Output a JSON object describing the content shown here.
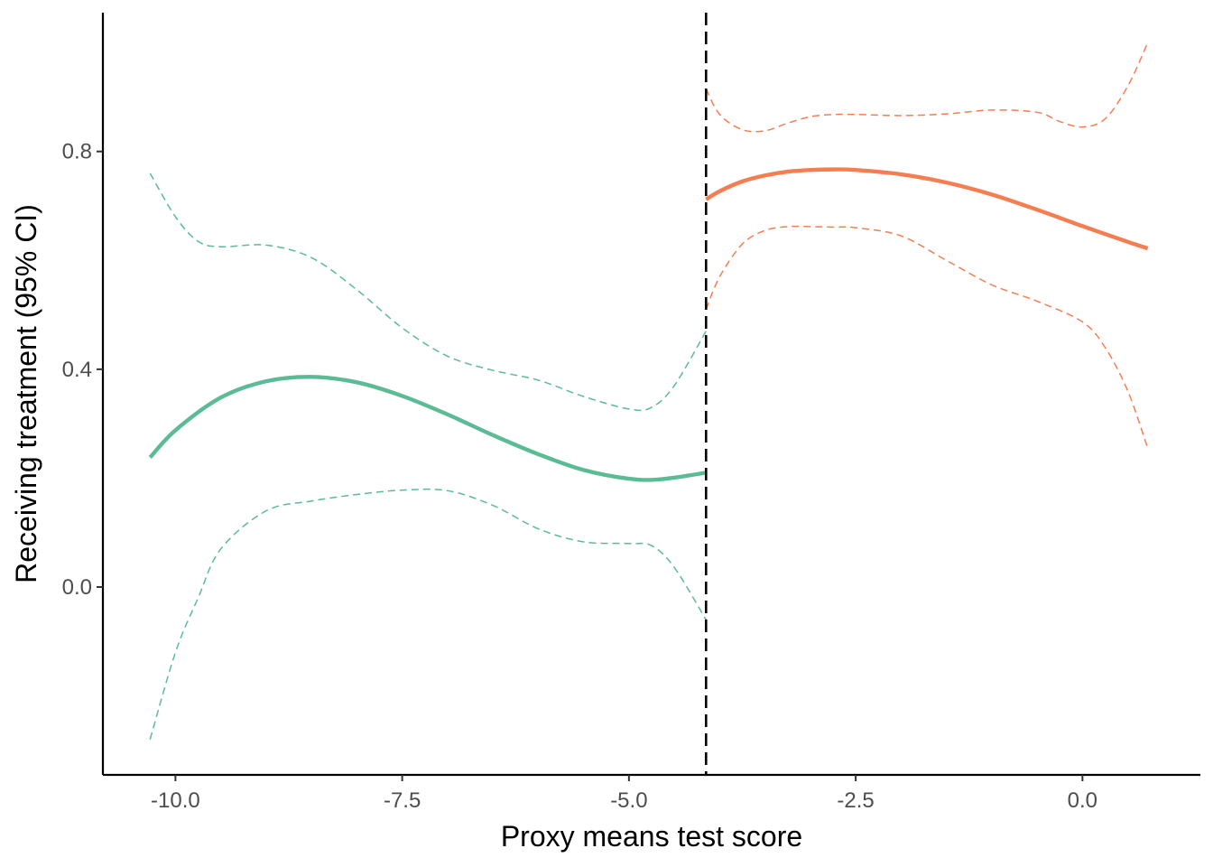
{
  "chart_data": {
    "type": "line",
    "title": "",
    "xlabel": "Proxy means test score",
    "ylabel": "Receiving treatment (95% CI)",
    "xlim": [
      -10.8,
      1.3
    ],
    "ylim": [
      -0.345,
      1.055
    ],
    "x_ticks": [
      -10.0,
      -7.5,
      -5.0,
      -2.5,
      0.0
    ],
    "x_tick_labels": [
      "-10.0",
      "-7.5",
      "-5.0",
      "-2.5",
      "0.0"
    ],
    "y_ticks": [
      0.0,
      0.4,
      0.8
    ],
    "y_tick_labels": [
      "0.0",
      "0.4",
      "0.8"
    ],
    "cutoff": -4.15,
    "grid": false,
    "legend": "none",
    "colors": {
      "left": "#5bbb95",
      "right": "#f47e52",
      "cutoff": "#000000",
      "axis": "#000000"
    },
    "series": [
      {
        "side": "left",
        "role": "fit",
        "x": [
          -10.28,
          -10.0,
          -9.5,
          -9.0,
          -8.5,
          -8.0,
          -7.5,
          -7.0,
          -6.5,
          -6.0,
          -5.5,
          -5.0,
          -4.65,
          -4.15
        ],
        "y": [
          0.238,
          0.288,
          0.348,
          0.378,
          0.386,
          0.376,
          0.351,
          0.317,
          0.279,
          0.244,
          0.215,
          0.199,
          0.198,
          0.21
        ]
      },
      {
        "side": "left",
        "role": "upper",
        "x": [
          -10.28,
          -10.0,
          -9.75,
          -9.5,
          -9.0,
          -8.5,
          -8.0,
          -7.5,
          -7.0,
          -6.5,
          -6.0,
          -5.5,
          -5.0,
          -4.75,
          -4.5,
          -4.15
        ],
        "y": [
          0.76,
          0.68,
          0.635,
          0.625,
          0.628,
          0.605,
          0.546,
          0.476,
          0.424,
          0.398,
          0.38,
          0.35,
          0.327,
          0.33,
          0.37,
          0.47
        ]
      },
      {
        "side": "left",
        "role": "lower",
        "x": [
          -10.28,
          -10.0,
          -9.75,
          -9.5,
          -9.0,
          -8.5,
          -8.0,
          -7.5,
          -7.0,
          -6.5,
          -6.0,
          -5.5,
          -5.0,
          -4.75,
          -4.5,
          -4.15
        ],
        "y": [
          -0.28,
          -0.12,
          -0.02,
          0.07,
          0.14,
          0.158,
          0.17,
          0.178,
          0.177,
          0.15,
          0.107,
          0.083,
          0.08,
          0.076,
          0.036,
          -0.06
        ]
      },
      {
        "side": "right",
        "role": "fit",
        "x": [
          -4.15,
          -4.0,
          -3.75,
          -3.5,
          -3.25,
          -3.0,
          -2.75,
          -2.5,
          -2.0,
          -1.5,
          -1.0,
          -0.5,
          0.0,
          0.5,
          0.72
        ],
        "y": [
          0.712,
          0.727,
          0.745,
          0.756,
          0.763,
          0.766,
          0.767,
          0.766,
          0.758,
          0.743,
          0.721,
          0.693,
          0.663,
          0.634,
          0.622
        ]
      },
      {
        "side": "right",
        "role": "upper",
        "x": [
          -4.15,
          -4.0,
          -3.75,
          -3.5,
          -3.25,
          -3.0,
          -2.75,
          -2.5,
          -2.0,
          -1.5,
          -1.0,
          -0.5,
          -0.25,
          0.0,
          0.25,
          0.5,
          0.72
        ],
        "y": [
          0.915,
          0.868,
          0.84,
          0.838,
          0.852,
          0.864,
          0.868,
          0.868,
          0.866,
          0.869,
          0.876,
          0.872,
          0.855,
          0.845,
          0.86,
          0.92,
          1.0
        ]
      },
      {
        "side": "right",
        "role": "lower",
        "x": [
          -4.15,
          -4.0,
          -3.75,
          -3.5,
          -3.25,
          -3.0,
          -2.75,
          -2.5,
          -2.0,
          -1.5,
          -1.0,
          -0.5,
          0.0,
          0.25,
          0.5,
          0.72
        ],
        "y": [
          0.51,
          0.57,
          0.63,
          0.655,
          0.662,
          0.662,
          0.661,
          0.66,
          0.645,
          0.6,
          0.555,
          0.525,
          0.487,
          0.44,
          0.36,
          0.255
        ]
      }
    ]
  }
}
